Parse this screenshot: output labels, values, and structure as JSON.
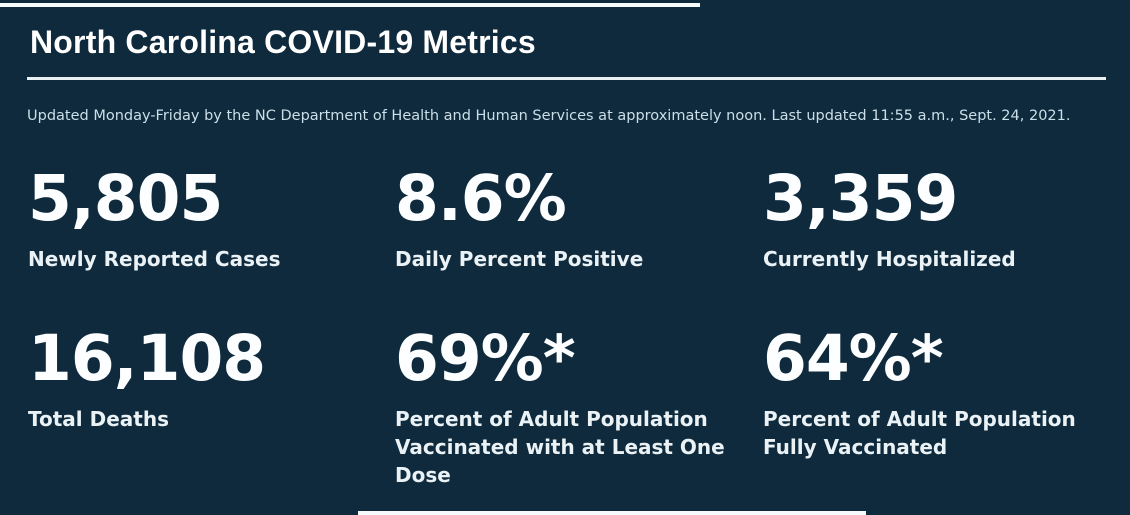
{
  "page": {
    "background_color": "#0e2a3c",
    "accent_color": "#ffffff",
    "subtitle_color": "#cbdfe9"
  },
  "header": {
    "title": "North Carolina COVID-19 Metrics",
    "subtitle": "Updated Monday-Friday by the NC Department of Health and Human Services at approximately noon. Last updated 11:55 a.m., Sept. 24, 2021."
  },
  "metrics": [
    {
      "value": "5,805",
      "label": "Newly Reported Cases"
    },
    {
      "value": "8.6%",
      "label": "Daily Percent Positive"
    },
    {
      "value": "3,359",
      "label": "Currently Hospitalized"
    },
    {
      "value": "16,108",
      "label": "Total Deaths"
    },
    {
      "value": "69%*",
      "label": "Percent of Adult Population Vaccinated with at Least One Dose"
    },
    {
      "value": "64%*",
      "label": "Percent of Adult Population Fully Vaccinated"
    }
  ]
}
